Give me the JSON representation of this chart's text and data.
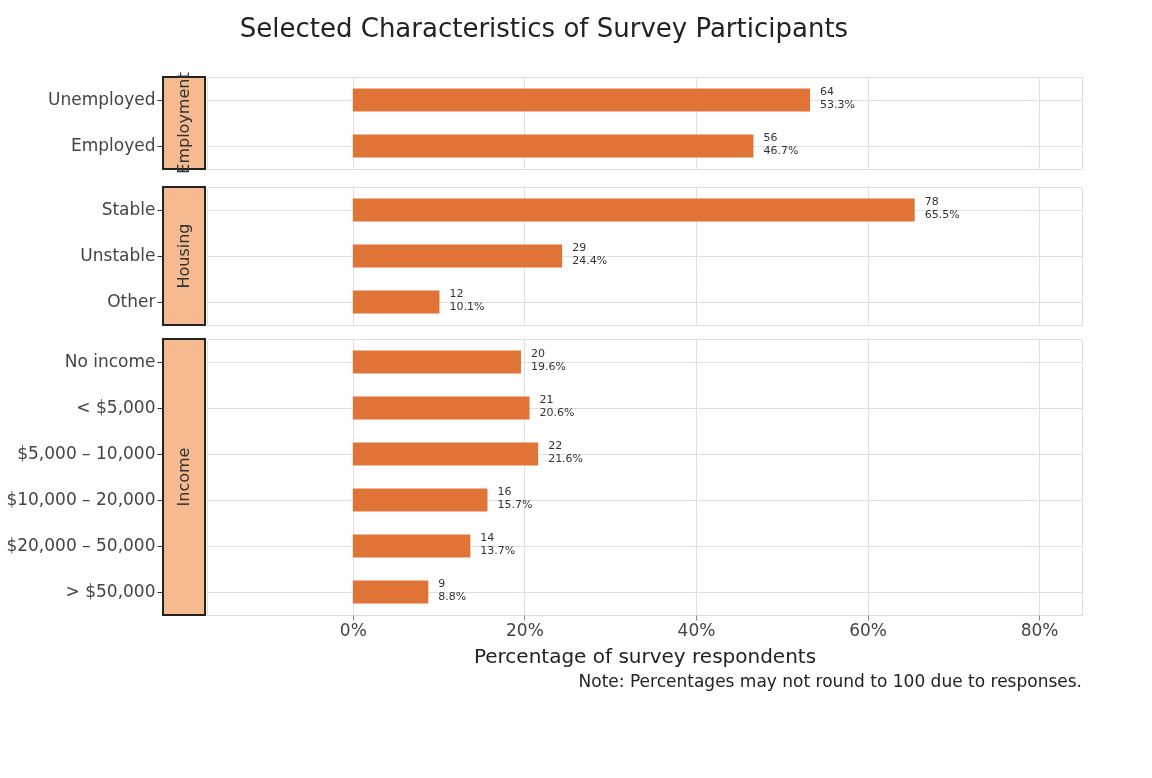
{
  "chart_data": [
    {
      "type": "bar",
      "orientation": "horizontal",
      "title": "Selected Characteristics of Survey Participants",
      "subtitle": "Employment",
      "categories": [
        "Unemployed",
        "Employed"
      ],
      "values": [
        53.3,
        46.7
      ],
      "value_labels": [
        "64\n53.3%",
        "56\n46.7%"
      ],
      "color": "#e07436",
      "xlim": [
        -17,
        85
      ],
      "xticks": [
        0,
        20,
        40,
        60,
        80
      ],
      "grid": true,
      "tick_labels": "y"
    },
    {
      "type": "bar",
      "orientation": "horizontal",
      "subtitle": "Housing",
      "categories": [
        "Stable",
        "Unstable",
        "Other"
      ],
      "values": [
        65.5,
        24.4,
        10.1
      ],
      "value_labels": [
        "78\n65.5%",
        "29\n24.4%",
        "12\n10.1%"
      ],
      "color": "#e07436",
      "xlim": [
        -17,
        85
      ],
      "xticks": [
        0,
        20,
        40,
        60,
        80
      ],
      "grid": true,
      "tick_labels": "y"
    },
    {
      "type": "bar",
      "orientation": "horizontal",
      "subtitle": "Income",
      "xlabel": "Percentage of survey respondents",
      "annotations": [
        "Note: Percentages may not round to 100 due to responses."
      ],
      "categories": [
        "No income",
        "< $5,000",
        "$5,000 – 10,000",
        "$10,000 – 20,000",
        "$20,000 – 50,000",
        "> $50,000"
      ],
      "values": [
        19.6,
        20.6,
        21.6,
        15.7,
        13.7,
        8.8
      ],
      "value_labels": [
        "20\n19.6%",
        "21\n20.6%",
        "22\n21.6%",
        "16\n15.7%",
        "14\n13.7%",
        "9\n8.8%"
      ],
      "color": "#e07436",
      "xlim": [
        -17,
        85
      ],
      "xticks": [
        {
          "value": 0,
          "label": "0%"
        },
        {
          "value": 20,
          "label": "20%"
        },
        {
          "value": 40,
          "label": "40%"
        },
        {
          "value": 60,
          "label": "60%"
        },
        {
          "value": 80,
          "label": "80%"
        }
      ],
      "grid": true
    }
  ]
}
